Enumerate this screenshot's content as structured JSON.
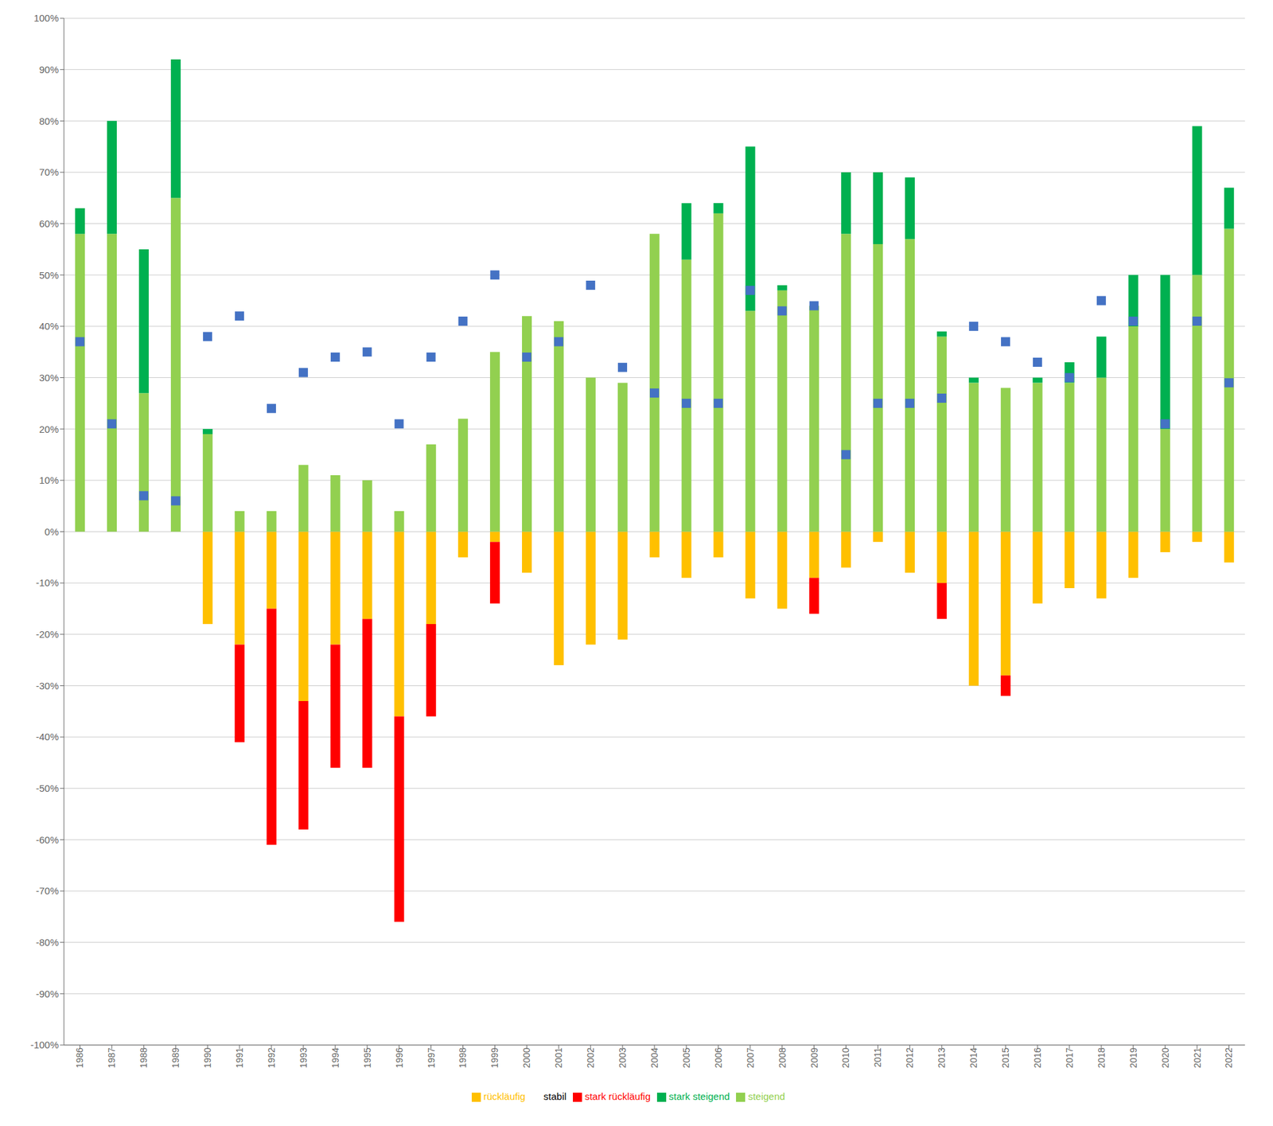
{
  "chart_data": {
    "type": "bar",
    "stacked": true,
    "grid": true,
    "legend": "bottom",
    "categories": [
      "1986",
      "1987",
      "1988",
      "1989",
      "1990",
      "1991",
      "1992",
      "1993",
      "1994",
      "1995",
      "1996",
      "1997",
      "1998",
      "1999",
      "2000",
      "2001",
      "2002",
      "2003",
      "2004",
      "2005",
      "2006",
      "2007",
      "2008",
      "2009",
      "2010",
      "2011",
      "2012",
      "2013",
      "2014",
      "2015",
      "2016",
      "2017",
      "2018",
      "2019",
      "2020",
      "2021",
      "2022"
    ],
    "ylim": [
      -100,
      100
    ],
    "yticks": [
      {
        "value": -100,
        "label": "-100%"
      },
      {
        "value": -90,
        "label": "-90%"
      },
      {
        "value": -80,
        "label": "-80%"
      },
      {
        "value": -70,
        "label": "-70%"
      },
      {
        "value": -60,
        "label": "-60%"
      },
      {
        "value": -50,
        "label": "-50%"
      },
      {
        "value": -40,
        "label": "-40%"
      },
      {
        "value": -30,
        "label": "-30%"
      },
      {
        "value": -20,
        "label": "-20%"
      },
      {
        "value": -10,
        "label": "-10%"
      },
      {
        "value": 0,
        "label": "0%"
      },
      {
        "value": 10,
        "label": "10%"
      },
      {
        "value": 20,
        "label": "20%"
      },
      {
        "value": 30,
        "label": "30%"
      },
      {
        "value": 40,
        "label": "40%"
      },
      {
        "value": 50,
        "label": "50%"
      },
      {
        "value": 60,
        "label": "60%"
      },
      {
        "value": 70,
        "label": "70%"
      },
      {
        "value": 80,
        "label": "80%"
      },
      {
        "value": 90,
        "label": "90%"
      },
      {
        "value": 100,
        "label": "100%"
      }
    ],
    "series": [
      {
        "name": "rückläufig",
        "color": "#ffc000",
        "type": "bar",
        "values": [
          0,
          0,
          0,
          0,
          -18,
          -22,
          -15,
          -33,
          -22,
          -17,
          -36,
          -18,
          -5,
          -2,
          -8,
          -26,
          -22,
          -21,
          -5,
          -9,
          -5,
          -13,
          -15,
          -9,
          -7,
          -2,
          -8,
          -10,
          -30,
          -28,
          -14,
          -11,
          -13,
          -9,
          -4,
          -2,
          -6
        ]
      },
      {
        "name": "stark rückläufig",
        "color": "#ff0000",
        "type": "bar",
        "values": [
          0,
          0,
          0,
          0,
          0,
          -19,
          -46,
          -25,
          -24,
          -29,
          -40,
          -18,
          0,
          -12,
          0,
          0,
          0,
          0,
          0,
          0,
          0,
          0,
          0,
          -7,
          0,
          0,
          0,
          -7,
          0,
          -4,
          0,
          0,
          0,
          0,
          0,
          0,
          0
        ]
      },
      {
        "name": "steigend",
        "color": "#92d050",
        "type": "bar",
        "values": [
          58,
          58,
          27,
          65,
          19,
          4,
          4,
          13,
          11,
          10,
          4,
          17,
          22,
          35,
          42,
          41,
          30,
          29,
          58,
          53,
          62,
          43,
          47,
          44,
          58,
          56,
          57,
          38,
          29,
          28,
          29,
          29,
          30,
          40,
          20,
          50,
          59
        ]
      },
      {
        "name": "stark steigend",
        "color": "#00b050",
        "type": "bar",
        "values": [
          5,
          22,
          28,
          27,
          1,
          0,
          0,
          0,
          0,
          0,
          0,
          0,
          0,
          0,
          0,
          0,
          0,
          0,
          0,
          11,
          2,
          32,
          1,
          0,
          12,
          14,
          12,
          1,
          1,
          0,
          1,
          4,
          8,
          10,
          30,
          29,
          8
        ]
      },
      {
        "name": "stabil",
        "color": "#4472c4",
        "type": "scatter",
        "marker": "square",
        "values": [
          37,
          21,
          7,
          6,
          38,
          42,
          24,
          31,
          34,
          35,
          21,
          34,
          41,
          50,
          34,
          37,
          48,
          32,
          27,
          25,
          25,
          47,
          43,
          44,
          15,
          25,
          25,
          26,
          40,
          37,
          33,
          30,
          45,
          41,
          21,
          41,
          29
        ]
      }
    ]
  }
}
